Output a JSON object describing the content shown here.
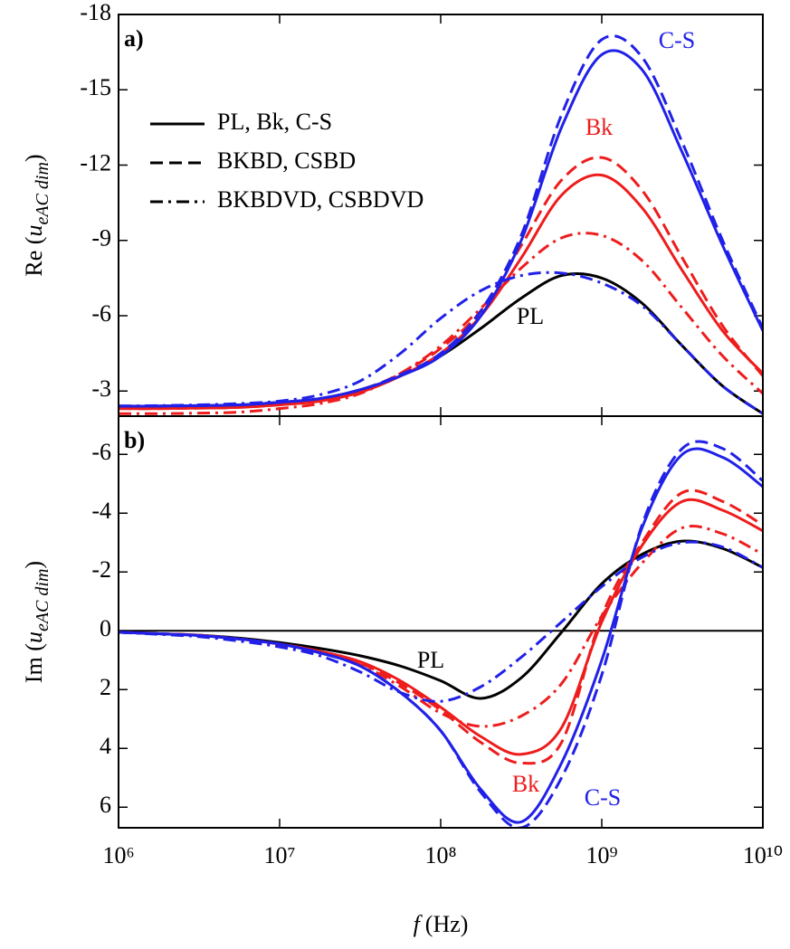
{
  "chart_data": [
    {
      "type": "line",
      "panel_label": "a)",
      "y_label": {
        "prefix": "Re (",
        "symbol": "u",
        "subscript": "eAC dim",
        "suffix": ")"
      },
      "log_x": true,
      "xlim": [
        1000000,
        10000000000
      ],
      "ylim": [
        -2,
        -18
      ],
      "yticks": [
        -18,
        -15,
        -12,
        -9,
        -6,
        -3
      ],
      "x": [
        1000000,
        1778279,
        3162278,
        5623413,
        10000000,
        17782794,
        31622777,
        56234133,
        100000000,
        177827941,
        316227766,
        562341325,
        1000000000,
        1778279410,
        3162277660,
        5623413252,
        10000000000
      ],
      "series": [
        {
          "color": "#000000",
          "style": "solid",
          "values": [
            -2.4,
            -2.4,
            -2.42,
            -2.45,
            -2.55,
            -2.7,
            -3.05,
            -3.6,
            -4.4,
            -5.5,
            -6.7,
            -7.6,
            -7.5,
            -6.5,
            -4.8,
            -3.2,
            -2.1
          ]
        },
        {
          "color": "#ee1c1c",
          "style": "solid",
          "values": [
            -2.3,
            -2.3,
            -2.32,
            -2.35,
            -2.45,
            -2.6,
            -2.95,
            -3.6,
            -4.5,
            -6.0,
            -8.3,
            -10.8,
            -11.6,
            -10.3,
            -7.8,
            -5.4,
            -3.7
          ]
        },
        {
          "color": "#ee1c1c",
          "style": "dashed",
          "values": [
            -2.3,
            -2.3,
            -2.32,
            -2.35,
            -2.45,
            -2.62,
            -3.0,
            -3.7,
            -4.7,
            -6.2,
            -8.8,
            -11.4,
            -12.3,
            -11.0,
            -8.3,
            -5.6,
            -3.6
          ]
        },
        {
          "color": "#ee1c1c",
          "style": "dashdot",
          "values": [
            -2.1,
            -2.1,
            -2.12,
            -2.16,
            -2.3,
            -2.5,
            -2.9,
            -3.7,
            -4.8,
            -6.3,
            -7.9,
            -9.1,
            -9.2,
            -8.2,
            -6.3,
            -4.4,
            -2.9
          ]
        },
        {
          "color": "#2020e8",
          "style": "solid",
          "values": [
            -2.4,
            -2.4,
            -2.42,
            -2.45,
            -2.55,
            -2.7,
            -3.05,
            -3.6,
            -4.4,
            -6.0,
            -9.0,
            -13.5,
            -16.4,
            -15.8,
            -12.5,
            -8.8,
            -5.4
          ]
        },
        {
          "color": "#2020e8",
          "style": "dashed",
          "values": [
            -2.4,
            -2.4,
            -2.42,
            -2.45,
            -2.55,
            -2.7,
            -3.05,
            -3.65,
            -4.5,
            -6.2,
            -9.2,
            -14.0,
            -17.0,
            -16.3,
            -12.9,
            -9.0,
            -5.5
          ]
        },
        {
          "color": "#2020e8",
          "style": "dashdot",
          "values": [
            -2.4,
            -2.42,
            -2.45,
            -2.5,
            -2.6,
            -2.85,
            -3.4,
            -4.5,
            -5.9,
            -7.0,
            -7.6,
            -7.7,
            -7.3,
            -6.4,
            -4.8,
            -3.2,
            -2.1
          ]
        }
      ],
      "legend": [
        {
          "label": "PL, Bk, C-S",
          "style": "solid"
        },
        {
          "label": "BKBD, CSBD",
          "style": "dashed"
        },
        {
          "label": "BKBDVD, CSBDVD",
          "style": "dashdot"
        }
      ],
      "annotations": [
        {
          "text": "C-S",
          "color": "#2020e8"
        },
        {
          "text": "Bk",
          "color": "#ee1c1c"
        },
        {
          "text": "PL",
          "color": "#000000"
        }
      ]
    },
    {
      "type": "line",
      "panel_label": "b)",
      "y_label": {
        "prefix": "Im (",
        "symbol": "u",
        "subscript": "eAC dim",
        "suffix": ")"
      },
      "x_label": {
        "symbol": "f",
        "text": "(Hz)"
      },
      "log_x": true,
      "xlim": [
        1000000,
        10000000000
      ],
      "xticks": [
        {
          "value": 1000000,
          "label": "10⁶"
        },
        {
          "value": 10000000,
          "label": "10⁷"
        },
        {
          "value": 100000000,
          "label": "10⁸"
        },
        {
          "value": 1000000000,
          "label": "10⁹"
        },
        {
          "value": 10000000000,
          "label": "10¹⁰"
        }
      ],
      "ylim": [
        6.7,
        -7.3
      ],
      "yticks": [
        -6,
        -4,
        -2,
        0,
        2,
        4,
        6
      ],
      "hline": 0,
      "x": [
        1000000,
        1778279,
        3162278,
        5623413,
        10000000,
        17782794,
        31622777,
        56234133,
        100000000,
        177827941,
        316227766,
        562341325,
        1000000000,
        1778279410,
        3162277660,
        5623413252,
        10000000000
      ],
      "series": [
        {
          "color": "#000000",
          "style": "solid",
          "values": [
            0.05,
            0.1,
            0.15,
            0.25,
            0.4,
            0.6,
            0.85,
            1.2,
            1.7,
            2.3,
            1.6,
            0.05,
            -1.6,
            -2.6,
            -3.05,
            -2.8,
            -2.15
          ]
        },
        {
          "color": "#ee1c1c",
          "style": "solid",
          "values": [
            0.05,
            0.1,
            0.15,
            0.28,
            0.45,
            0.7,
            1.05,
            1.7,
            2.6,
            3.6,
            4.2,
            3.3,
            -0.3,
            -2.9,
            -4.4,
            -4.1,
            -3.4
          ]
        },
        {
          "color": "#ee1c1c",
          "style": "dashed",
          "values": [
            0.05,
            0.1,
            0.15,
            0.28,
            0.45,
            0.7,
            1.1,
            1.8,
            2.7,
            3.8,
            4.5,
            3.8,
            -0.5,
            -3.0,
            -4.7,
            -4.4,
            -3.6
          ]
        },
        {
          "color": "#ee1c1c",
          "style": "dashdot",
          "values": [
            0.05,
            0.1,
            0.16,
            0.3,
            0.48,
            0.75,
            1.15,
            1.9,
            2.8,
            3.25,
            2.9,
            1.8,
            -0.5,
            -2.3,
            -3.5,
            -3.3,
            -2.6
          ]
        },
        {
          "color": "#2020e8",
          "style": "solid",
          "values": [
            0.05,
            0.1,
            0.16,
            0.28,
            0.45,
            0.75,
            1.2,
            2.1,
            3.4,
            5.4,
            6.5,
            4.5,
            1.0,
            -3.5,
            -6.0,
            -5.9,
            -4.9
          ]
        },
        {
          "color": "#2020e8",
          "style": "dashed",
          "values": [
            0.05,
            0.1,
            0.16,
            0.28,
            0.45,
            0.75,
            1.2,
            2.1,
            3.4,
            5.5,
            6.7,
            5.0,
            1.5,
            -3.6,
            -6.2,
            -6.2,
            -5.1
          ]
        },
        {
          "color": "#2020e8",
          "style": "dashdot",
          "values": [
            0.05,
            0.12,
            0.2,
            0.35,
            0.55,
            0.85,
            1.4,
            2.1,
            2.4,
            1.9,
            0.9,
            -0.3,
            -1.5,
            -2.5,
            -3.0,
            -2.85,
            -2.15
          ]
        }
      ],
      "annotations": [
        {
          "text": "PL",
          "color": "#000000"
        },
        {
          "text": "Bk",
          "color": "#ee1c1c"
        },
        {
          "text": "C-S",
          "color": "#2020e8"
        }
      ]
    }
  ]
}
